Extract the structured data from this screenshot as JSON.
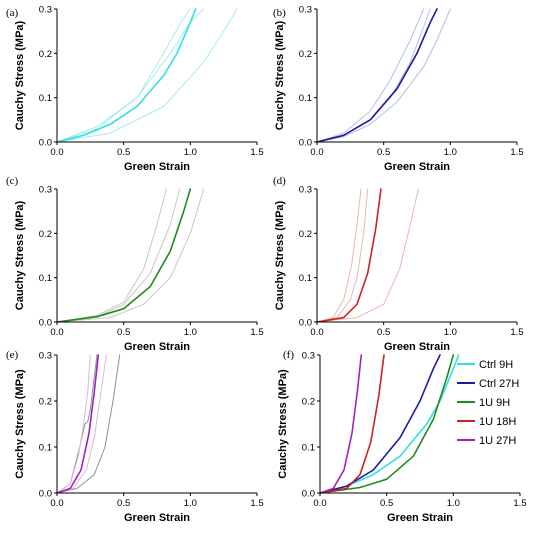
{
  "figure": {
    "legend": [
      {
        "label": "Ctrl 9H",
        "color": "#33e0e0"
      },
      {
        "label": "Ctrl 27H",
        "color": "#1a1aa8"
      },
      {
        "label": "1U 9H",
        "color": "#1f8a1f"
      },
      {
        "label": "1U 18H",
        "color": "#cc2222"
      },
      {
        "label": "1U 27H",
        "color": "#a020c8"
      }
    ]
  },
  "chart_data": [
    {
      "panel": "(a)",
      "type": "line",
      "xlabel": "Green Strain",
      "ylabel": "Cauchy Stress (MPa)",
      "xlim": [
        0,
        1.5
      ],
      "ylim": [
        0,
        0.3
      ],
      "xticks": [
        "0.0",
        "0.5",
        "1.0",
        "1.5"
      ],
      "yticks": [
        "0.0",
        "0.1",
        "0.2",
        "0.3"
      ],
      "series": [
        {
          "role": "mean",
          "color": "#33e0e0",
          "x": [
            0,
            0.2,
            0.4,
            0.6,
            0.8,
            0.9,
            1.0,
            1.04
          ],
          "y": [
            0,
            0.015,
            0.04,
            0.08,
            0.15,
            0.2,
            0.27,
            0.3
          ]
        },
        {
          "role": "sample",
          "color": "#a8ecec",
          "x": [
            0,
            0.3,
            0.6,
            0.85,
            1.0,
            1.1
          ],
          "y": [
            0,
            0.035,
            0.1,
            0.2,
            0.27,
            0.3
          ]
        },
        {
          "role": "sample",
          "color": "#a8ecec",
          "x": [
            0,
            0.3,
            0.6,
            0.8,
            0.93,
            1.0
          ],
          "y": [
            0,
            0.03,
            0.1,
            0.2,
            0.27,
            0.3
          ]
        },
        {
          "role": "sample",
          "color": "#a8ecec",
          "x": [
            0,
            0.4,
            0.8,
            1.1,
            1.25,
            1.35
          ],
          "y": [
            0,
            0.02,
            0.08,
            0.18,
            0.25,
            0.3
          ]
        }
      ]
    },
    {
      "panel": "(b)",
      "type": "line",
      "xlabel": "Green Strain",
      "ylabel": "Cauchy Stress (MPa)",
      "xlim": [
        0,
        1.5
      ],
      "ylim": [
        0,
        0.3
      ],
      "xticks": [
        "0.0",
        "0.5",
        "1.0",
        "1.5"
      ],
      "yticks": [
        "0.0",
        "0.1",
        "0.2",
        "0.3"
      ],
      "series": [
        {
          "role": "mean",
          "color": "#1a1aa8",
          "x": [
            0,
            0.2,
            0.4,
            0.6,
            0.75,
            0.85,
            0.9
          ],
          "y": [
            0,
            0.015,
            0.05,
            0.12,
            0.2,
            0.27,
            0.3
          ]
        },
        {
          "role": "sample",
          "color": "#b8bce8",
          "x": [
            0,
            0.2,
            0.4,
            0.55,
            0.7,
            0.8
          ],
          "y": [
            0,
            0.02,
            0.07,
            0.14,
            0.23,
            0.3
          ]
        },
        {
          "role": "sample",
          "color": "#b8bce8",
          "x": [
            0,
            0.2,
            0.4,
            0.6,
            0.8,
            0.9,
            1.0
          ],
          "y": [
            0,
            0.012,
            0.04,
            0.09,
            0.17,
            0.23,
            0.3
          ]
        },
        {
          "role": "sample",
          "color": "#b8bce8",
          "x": [
            0,
            0.2,
            0.4,
            0.55,
            0.7,
            0.85
          ],
          "y": [
            0,
            0.015,
            0.05,
            0.1,
            0.18,
            0.3
          ]
        }
      ]
    },
    {
      "panel": "(c)",
      "type": "line",
      "xlabel": "Green Strain",
      "ylabel": "Cauchy Stress (MPa)",
      "xlim": [
        0,
        1.5
      ],
      "ylim": [
        0,
        0.3
      ],
      "xticks": [
        "0.0",
        "0.5",
        "1.0",
        "1.5"
      ],
      "yticks": [
        "0.0",
        "0.1",
        "0.2",
        "0.3"
      ],
      "series": [
        {
          "role": "mean",
          "color": "#1f8a1f",
          "x": [
            0,
            0.3,
            0.5,
            0.7,
            0.85,
            0.95,
            1.0
          ],
          "y": [
            0,
            0.012,
            0.03,
            0.08,
            0.16,
            0.25,
            0.3
          ]
        },
        {
          "role": "sample",
          "color": "#c8c8c0",
          "x": [
            0,
            0.3,
            0.5,
            0.65,
            0.75,
            0.82
          ],
          "y": [
            0,
            0.015,
            0.045,
            0.12,
            0.22,
            0.3
          ]
        },
        {
          "role": "sample",
          "color": "#c8c8c0",
          "x": [
            0,
            0.3,
            0.5,
            0.7,
            0.85,
            0.92
          ],
          "y": [
            0,
            0.012,
            0.04,
            0.11,
            0.22,
            0.3
          ]
        },
        {
          "role": "sample",
          "color": "#c8c8c0",
          "x": [
            0,
            0.4,
            0.65,
            0.85,
            1.0,
            1.1
          ],
          "y": [
            0,
            0.01,
            0.04,
            0.1,
            0.2,
            0.3
          ]
        }
      ]
    },
    {
      "panel": "(d)",
      "type": "line",
      "xlabel": "Green Strain",
      "ylabel": "Cauchy Stress (MPa)",
      "xlim": [
        0,
        1.5
      ],
      "ylim": [
        0,
        0.3
      ],
      "xticks": [
        "0.0",
        "0.5",
        "1.0",
        "1.5"
      ],
      "yticks": [
        "0.0",
        "0.1",
        "0.2",
        "0.3"
      ],
      "series": [
        {
          "role": "mean",
          "color": "#cc2222",
          "x": [
            0,
            0.2,
            0.3,
            0.38,
            0.44,
            0.48
          ],
          "y": [
            0,
            0.01,
            0.04,
            0.11,
            0.21,
            0.3
          ]
        },
        {
          "role": "sample",
          "color": "#e8b8b0",
          "x": [
            0,
            0.12,
            0.2,
            0.26,
            0.3,
            0.33
          ],
          "y": [
            0,
            0.01,
            0.05,
            0.13,
            0.22,
            0.3
          ]
        },
        {
          "role": "sample",
          "color": "#e8b8b0",
          "x": [
            0,
            0.15,
            0.25,
            0.3,
            0.35,
            0.38
          ],
          "y": [
            0,
            0.01,
            0.05,
            0.1,
            0.2,
            0.3
          ]
        },
        {
          "role": "sample",
          "color": "#e8b8b0",
          "x": [
            0,
            0.3,
            0.5,
            0.62,
            0.7,
            0.76
          ],
          "y": [
            0,
            0.01,
            0.04,
            0.12,
            0.22,
            0.3
          ]
        }
      ]
    },
    {
      "panel": "(e)",
      "type": "line",
      "xlabel": "Green Strain",
      "ylabel": "Cauchy Stress (MPa)",
      "xlim": [
        0,
        1.5
      ],
      "ylim": [
        0,
        0.3
      ],
      "xticks": [
        "0.0",
        "0.5",
        "1.0",
        "1.5"
      ],
      "yticks": [
        "0.0",
        "0.1",
        "0.2",
        "0.3"
      ],
      "series": [
        {
          "role": "mean",
          "color": "#a020c8",
          "x": [
            0,
            0.1,
            0.18,
            0.24,
            0.28,
            0.31
          ],
          "y": [
            0,
            0.01,
            0.05,
            0.13,
            0.22,
            0.3
          ]
        },
        {
          "role": "sample",
          "color": "#909090",
          "x": [
            0,
            0.1,
            0.17,
            0.21,
            0.23,
            0.25,
            0.27,
            0.3
          ],
          "y": [
            0,
            0.02,
            0.1,
            0.15,
            0.155,
            0.18,
            0.23,
            0.3
          ]
        },
        {
          "role": "sample",
          "color": "#909090",
          "x": [
            0,
            0.15,
            0.28,
            0.36,
            0.42,
            0.47
          ],
          "y": [
            0,
            0.01,
            0.04,
            0.1,
            0.2,
            0.3
          ]
        },
        {
          "role": "sample",
          "color": "#d8b8e0",
          "x": [
            0,
            0.1,
            0.16,
            0.2,
            0.23,
            0.25
          ],
          "y": [
            0,
            0.02,
            0.08,
            0.15,
            0.22,
            0.3
          ]
        },
        {
          "role": "sample",
          "color": "#d8b8e0",
          "x": [
            0,
            0.12,
            0.22,
            0.28,
            0.33,
            0.37
          ],
          "y": [
            0,
            0.01,
            0.05,
            0.12,
            0.22,
            0.3
          ]
        }
      ]
    },
    {
      "panel": "(f)",
      "type": "line",
      "xlabel": "Green Strain",
      "ylabel": "Cauchy Stress (MPa)",
      "xlim": [
        0,
        1.5
      ],
      "ylim": [
        0,
        0.3
      ],
      "xticks": [
        "0.0",
        "0.5",
        "1.0",
        "1.5"
      ],
      "yticks": [
        "0.0",
        "0.1",
        "0.2",
        "0.3"
      ],
      "legend_position": "top-right",
      "series": [
        {
          "name": "Ctrl 9H",
          "color": "#33e0e0",
          "x": [
            0,
            0.2,
            0.4,
            0.6,
            0.8,
            0.9,
            1.0,
            1.04
          ],
          "y": [
            0,
            0.015,
            0.04,
            0.08,
            0.15,
            0.2,
            0.27,
            0.3
          ]
        },
        {
          "name": "Ctrl 27H",
          "color": "#1a1aa8",
          "x": [
            0,
            0.2,
            0.4,
            0.6,
            0.75,
            0.85,
            0.9
          ],
          "y": [
            0,
            0.015,
            0.05,
            0.12,
            0.2,
            0.27,
            0.3
          ]
        },
        {
          "name": "1U 9H",
          "color": "#1f8a1f",
          "x": [
            0,
            0.3,
            0.5,
            0.7,
            0.85,
            0.95,
            1.0
          ],
          "y": [
            0,
            0.012,
            0.03,
            0.08,
            0.16,
            0.25,
            0.3
          ]
        },
        {
          "name": "1U 18H",
          "color": "#cc2222",
          "x": [
            0,
            0.2,
            0.3,
            0.38,
            0.44,
            0.48
          ],
          "y": [
            0,
            0.01,
            0.04,
            0.11,
            0.21,
            0.3
          ]
        },
        {
          "name": "1U 27H",
          "color": "#a020c8",
          "x": [
            0,
            0.1,
            0.18,
            0.24,
            0.28,
            0.31
          ],
          "y": [
            0,
            0.01,
            0.05,
            0.13,
            0.22,
            0.3
          ]
        }
      ]
    }
  ]
}
